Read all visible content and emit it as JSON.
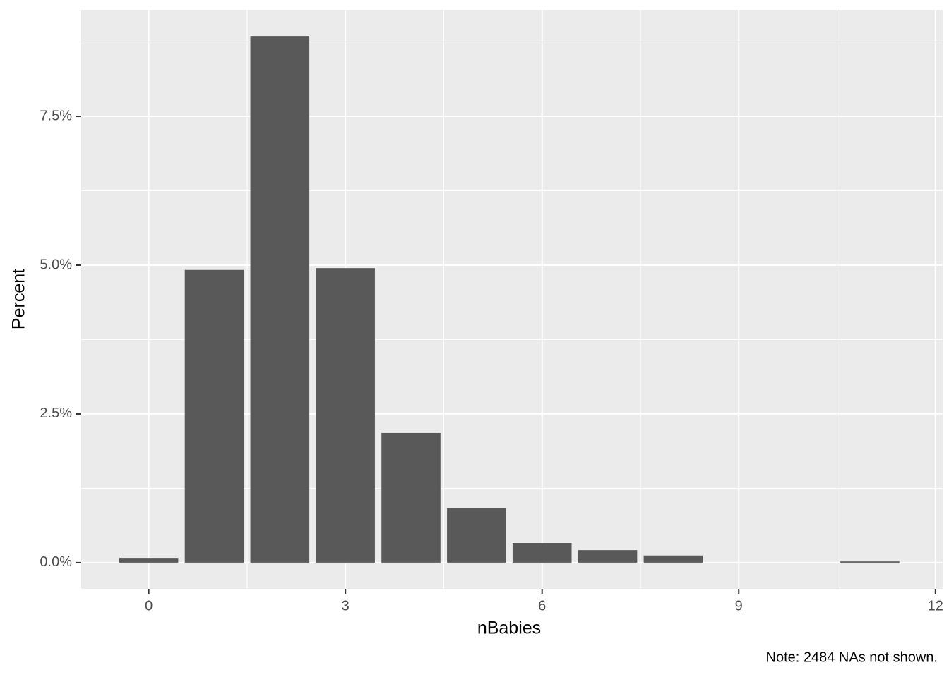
{
  "chart_data": {
    "type": "bar",
    "x": [
      0,
      1,
      2,
      3,
      4,
      5,
      6,
      7,
      8,
      11
    ],
    "values": [
      0.08,
      4.92,
      8.85,
      4.95,
      2.18,
      0.92,
      0.33,
      0.21,
      0.12,
      0.02
    ],
    "color": "#595959",
    "x_label": "nBabies",
    "y_label": "Percent",
    "caption": "Note: 2484 NAs not shown.",
    "xlim": [
      -1.03,
      12.11
    ],
    "xticks": [
      0,
      3,
      6,
      9,
      12
    ],
    "ylim": [
      -0.44,
      9.29
    ],
    "yticks": [
      {
        "value": 0,
        "label": "0.0%"
      },
      {
        "value": 2.5,
        "label": "2.5%"
      },
      {
        "value": 5,
        "label": "5.0%"
      },
      {
        "value": 7.5,
        "label": "7.5%"
      }
    ],
    "grid": true
  }
}
